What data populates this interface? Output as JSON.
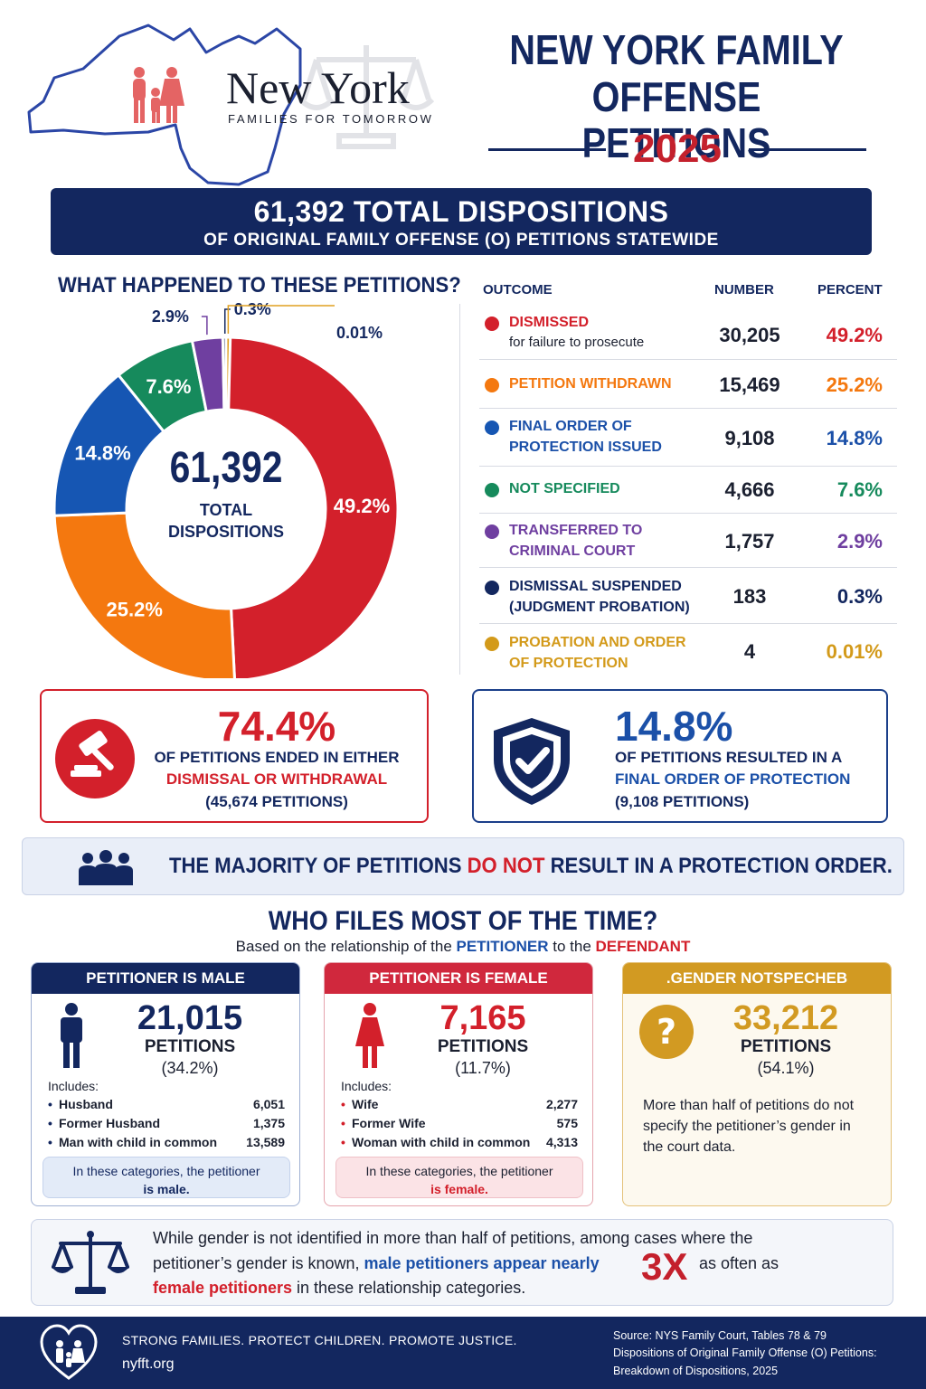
{
  "header": {
    "logo_main": "New York",
    "logo_sub": "FAMILIES FOR TOMORROW",
    "title_line1": "NEW YORK FAMILY",
    "title_line2": "OFFENSE PETITIONS",
    "year": "2025"
  },
  "banner": {
    "line1": "61,392 TOTAL DISPOSITIONS",
    "line2": "OF ORIGINAL FAMILY OFFENSE (O) PETITIONS STATEWIDE"
  },
  "section1_title": "WHAT HAPPENED TO THESE PETITIONS?",
  "chart_data": {
    "type": "pie",
    "center_value": "61,392",
    "center_label_line1": "TOTAL",
    "center_label_line2": "DISPOSITIONS",
    "slices": [
      {
        "label": "DISMISSED",
        "value": 30205,
        "percent": 49.2,
        "percent_label": "49.2%",
        "color": "#d3202b"
      },
      {
        "label": "PETITION WITHDRAWN",
        "value": 15469,
        "percent": 25.2,
        "percent_label": "25.2%",
        "color": "#f4780f"
      },
      {
        "label": "FINAL ORDER OF PROTECTION ISSUED",
        "value": 9108,
        "percent": 14.8,
        "percent_label": "14.8%",
        "color": "#1656b3"
      },
      {
        "label": "NOT SPECIFIED",
        "value": 4666,
        "percent": 7.6,
        "percent_label": "7.6%",
        "color": "#168a5c"
      },
      {
        "label": "TRANSFERRED TO CRIMINAL COURT",
        "value": 1757,
        "percent": 2.9,
        "percent_label": "2.9%",
        "color": "#6f3fa0"
      },
      {
        "label": "DISMISSAL SUSPENDED (JUDGMENT PROBATION)",
        "value": 183,
        "percent": 0.3,
        "percent_label": "0.3%",
        "color": "#13275f"
      },
      {
        "label": "PROBATION AND ORDER OF PROTECTION",
        "value": 4,
        "percent": 0.01,
        "percent_label": "0.01%",
        "color": "#e0a020"
      }
    ]
  },
  "table": {
    "col_outcome": "OUTCOME",
    "col_number": "NUMBER",
    "col_percent": "PERCENT",
    "rows": [
      {
        "line1": "DISMISSED",
        "line2": "for failure to prosecute",
        "number": "30,205",
        "percent": "49.2%",
        "color": "#d3202b"
      },
      {
        "line1": "PETITION WITHDRAWN",
        "line2": "",
        "number": "15,469",
        "percent": "25.2%",
        "color": "#f4780f"
      },
      {
        "line1": "FINAL ORDER OF",
        "line2": "PROTECTION ISSUED",
        "number": "9,108",
        "percent": "14.8%",
        "color": "#1656b3"
      },
      {
        "line1": "NOT SPECIFIED",
        "line2": "",
        "number": "4,666",
        "percent": "7.6%",
        "color": "#168a5c"
      },
      {
        "line1": "TRANSFERRED TO",
        "line2": "CRIMINAL COURT",
        "number": "1,757",
        "percent": "2.9%",
        "color": "#6f3fa0"
      },
      {
        "line1": "DISMISSAL SUSPENDED",
        "line2": "(JUDGMENT PROBATION)",
        "number": "183",
        "percent": "0.3%",
        "color": "#13275f"
      },
      {
        "line1": "PROBATION AND ORDER",
        "line2": "OF PROTECTION",
        "number": "4",
        "percent": "0.01%",
        "color": "#d39a1a"
      }
    ]
  },
  "callout_dismissal": {
    "value": "74.4%",
    "line1": "OF PETITIONS ENDED IN EITHER",
    "line2": "DISMISSAL OR WITHDRAWAL",
    "line3": "(45,674 PETITIONS)",
    "icon": "gavel-icon"
  },
  "callout_protection": {
    "value": "14.8%",
    "line1": "OF PETITIONS RESULTED IN A",
    "line2": "FINAL ORDER OF PROTECTION",
    "line3": "(9,108 PETITIONS)",
    "icon": "shield-check-icon"
  },
  "majority": {
    "pre": "THE MAJORITY OF PETITIONS ",
    "emph": "DO NOT",
    "post": " RESULT IN A PROTECTION ORDER."
  },
  "section2": {
    "title": "WHO FILES MOST OF THE TIME?",
    "sub_pre": "Based on the relationship of the ",
    "sub_petitioner": "PETITIONER",
    "sub_mid": " to the ",
    "sub_defendant": "DEFENDANT"
  },
  "cards": {
    "male": {
      "header": "PETITIONER IS MALE",
      "number": "21,015",
      "petitions": "PETITIONS",
      "percent": "(34.2%)",
      "includes": "Includes:",
      "items": [
        {
          "label": "Husband",
          "value": "6,051"
        },
        {
          "label": "Former Husband",
          "value": "1,375"
        },
        {
          "label": "Man with child in common",
          "value": "13,589"
        }
      ],
      "note_line1": "In these categories, the petitioner",
      "note_line2": "is male."
    },
    "female": {
      "header": "PETITIONER IS FEMALE",
      "number": "7,165",
      "petitions": "PETITIONS",
      "percent": "(11.7%)",
      "includes": "Includes:",
      "items": [
        {
          "label": "Wife",
          "value": "2,277"
        },
        {
          "label": "Former Wife",
          "value": "575"
        },
        {
          "label": "Woman with child in common",
          "value": "4,313"
        }
      ],
      "note_line1": "In these categories, the petitioner",
      "note_line2": "is female."
    },
    "unspecified": {
      "header": ".GENDER NOTSPECHEB",
      "number": "33,212",
      "petitions": "PETITIONS",
      "percent": "(54.1%)",
      "text_line1": "More than half of petitions do not",
      "text_line2": "specify the petitioner’s gender in",
      "text_line3": "the court data."
    }
  },
  "conclusion": {
    "line1": "While gender is not identified in more than half of petitions, among cases where the",
    "line2_pre": "petitioner’s gender is known, ",
    "line2_male": "male petitioners appear nearly",
    "big": "3X",
    "line2_post": "as often as",
    "line3_female": "female petitioners",
    "line3_post": " in these relationship categories."
  },
  "footer": {
    "tagline": "STRONG FAMILIES. PROTECT CHILDREN. PROMOTE JUSTICE.",
    "url": "nyfft.org",
    "source1": "Source: NYS Family Court, Tables 78 & 79",
    "source2": "Dispositions of Original Family Offense (O) Petitions:",
    "source3": "Breakdown of Dispositions, 2025"
  }
}
